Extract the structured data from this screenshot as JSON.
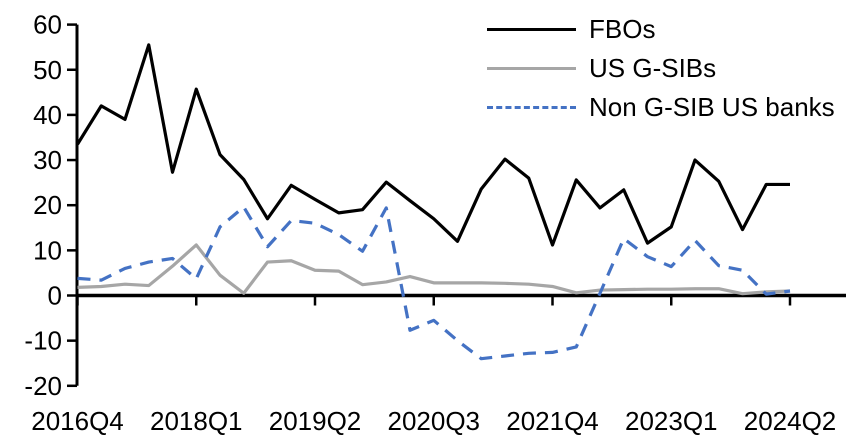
{
  "chart_data": {
    "type": "line",
    "title": "",
    "xlabel": "",
    "ylabel": "",
    "categories": [
      "2016Q4",
      "2017Q1",
      "2017Q2",
      "2017Q3",
      "2017Q4",
      "2018Q1",
      "2018Q2",
      "2018Q3",
      "2018Q4",
      "2019Q1",
      "2019Q2",
      "2019Q3",
      "2019Q4",
      "2020Q1",
      "2020Q2",
      "2020Q3",
      "2020Q4",
      "2021Q1",
      "2021Q2",
      "2021Q3",
      "2021Q4",
      "2022Q1",
      "2022Q2",
      "2022Q3",
      "2022Q4",
      "2023Q1",
      "2023Q2",
      "2023Q3",
      "2023Q4",
      "2024Q1",
      "2024Q2"
    ],
    "series": [
      {
        "name": "FBOs",
        "color": "#000000",
        "line_style": "solid",
        "values": [
          33.5,
          42,
          39,
          55.5,
          27.3,
          45.7,
          31.2,
          25.7,
          17,
          24.4,
          21.3,
          18.3,
          19,
          25.1,
          21,
          17,
          12,
          23.6,
          30.2,
          26,
          11.2,
          25.6,
          19.4,
          23.4,
          11.6,
          15.2,
          30,
          25.3,
          14.6,
          24.6,
          24.6
        ]
      },
      {
        "name": "US G-SIBs",
        "color": "#a6a6a6",
        "line_style": "solid",
        "values": [
          1.8,
          2,
          2.5,
          2.2,
          6.5,
          11.2,
          4.5,
          0.5,
          7.4,
          7.7,
          5.6,
          5.4,
          2.4,
          3,
          4.2,
          2.8,
          2.8,
          2.8,
          2.7,
          2.5,
          2,
          0.6,
          1.2,
          1.3,
          1.4,
          1.4,
          1.5,
          1.5,
          0.4,
          0.8,
          1
        ]
      },
      {
        "name": "Non G-SIB US banks",
        "color": "#4472c4",
        "line_style": "dashed",
        "values": [
          3.8,
          3.4,
          6,
          7.4,
          8.2,
          3.7,
          15.2,
          19.6,
          10.8,
          16.6,
          16,
          13.5,
          9.8,
          19.4,
          -7.7,
          -5.5,
          -10,
          -14,
          -13.4,
          -12.8,
          -12.6,
          -11.4,
          0.5,
          12.6,
          8.6,
          6.4,
          12.2,
          6.6,
          5.6,
          0.3,
          1
        ]
      }
    ],
    "ylim": [
      -20,
      60
    ],
    "yticks": [
      60,
      50,
      40,
      30,
      20,
      10,
      0,
      -10,
      -20
    ],
    "ytick_labels": [
      "60",
      "50",
      "40",
      "30",
      "20",
      "10",
      "0",
      "-10",
      "-20"
    ],
    "xtick_indices": [
      0,
      5,
      10,
      15,
      20,
      25,
      30
    ],
    "xtick_labels": [
      "2016Q4",
      "2018Q1",
      "2019Q2",
      "2020Q3",
      "2021Q4",
      "2023Q1",
      "2024Q2"
    ],
    "grid": false,
    "legend_position": "top-right",
    "axis_crosses_at_zero": true
  },
  "colors": {
    "axis": "#000000",
    "background": "#ffffff",
    "fbos_line": "#000000",
    "gsib_line": "#a6a6a6",
    "non_gsib_line": "#4472c4"
  }
}
